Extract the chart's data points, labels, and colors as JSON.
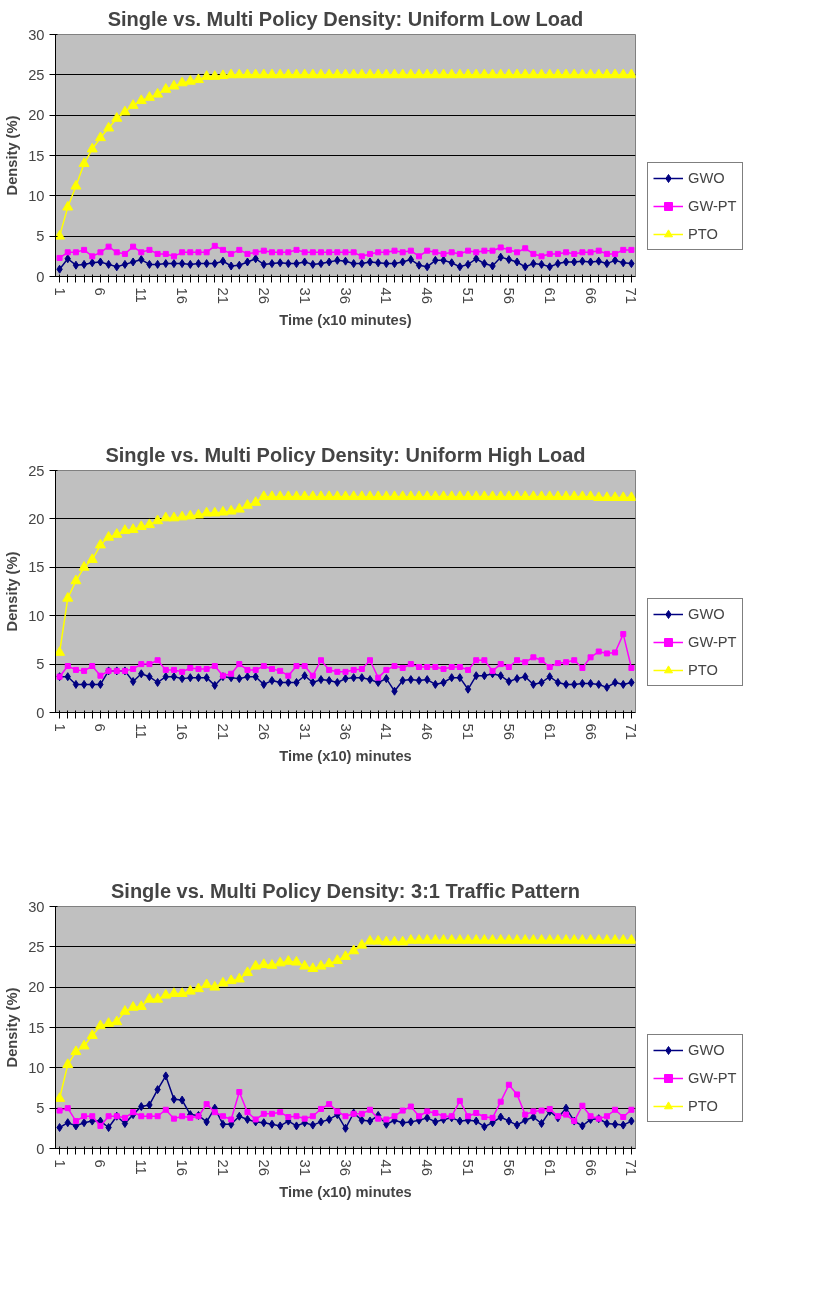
{
  "chart_data": [
    {
      "type": "line",
      "title": "Single vs. Multi Policy Density: Uniform Low Load",
      "xlabel": "Time (x10 minutes)",
      "ylabel": "Density (%)",
      "categories": [
        "1",
        null,
        null,
        null,
        null,
        "6",
        null,
        null,
        null,
        null,
        "11",
        null,
        null,
        null,
        null,
        "16",
        null,
        null,
        null,
        null,
        "21",
        null,
        null,
        null,
        null,
        "26",
        null,
        null,
        null,
        null,
        "31",
        null,
        null,
        null,
        null,
        "36",
        null,
        null,
        null,
        null,
        "41",
        null,
        null,
        null,
        null,
        "46",
        null,
        null,
        null,
        null,
        "51",
        null,
        null,
        null,
        null,
        "56",
        null,
        null,
        null,
        null,
        "61",
        null,
        null,
        null,
        null,
        "66",
        null,
        null,
        null,
        null,
        "71"
      ],
      "ylim": [
        0,
        30
      ],
      "yticks": [
        0,
        5,
        10,
        15,
        20,
        25,
        30
      ],
      "grid": "y",
      "legend": "right",
      "series": [
        {
          "name": "GWO",
          "color": "#000080",
          "marker": "diamond",
          "values": [
            0.9,
            2.2,
            1.4,
            1.5,
            1.7,
            1.8,
            1.5,
            1.2,
            1.5,
            1.8,
            2.1,
            1.5,
            1.5,
            1.6,
            1.6,
            1.6,
            1.5,
            1.6,
            1.6,
            1.6,
            1.9,
            1.3,
            1.4,
            1.8,
            2.2,
            1.5,
            1.6,
            1.7,
            1.6,
            1.6,
            1.8,
            1.5,
            1.6,
            1.8,
            2,
            1.9,
            1.6,
            1.6,
            1.8,
            1.7,
            1.6,
            1.6,
            1.8,
            2.1,
            1.4,
            1.2,
            2,
            2,
            1.7,
            1.2,
            1.5,
            2.2,
            1.6,
            1.3,
            2.4,
            2.1,
            1.8,
            1.2,
            1.6,
            1.5,
            1.2,
            1.6,
            1.8,
            1.8,
            1.9,
            1.8,
            1.9,
            1.6,
            2,
            1.7,
            1.6
          ]
        },
        {
          "name": "GW-PT",
          "color": "#ff00ff",
          "marker": "square",
          "values": [
            2.3,
            3,
            3,
            3.3,
            2.5,
            3,
            3.7,
            3,
            2.8,
            3.7,
            3,
            3.3,
            2.8,
            2.8,
            2.5,
            3,
            3,
            3,
            3,
            3.8,
            3.3,
            2.8,
            3.3,
            2.8,
            3,
            3.2,
            3,
            3,
            3,
            3.3,
            3,
            3,
            3,
            3,
            3,
            3,
            3,
            2.5,
            2.8,
            3,
            3,
            3.2,
            3,
            3.2,
            2.5,
            3.2,
            3,
            2.8,
            3,
            2.8,
            3.2,
            3,
            3.2,
            3.2,
            3.6,
            3.3,
            3,
            3.5,
            2.8,
            2.5,
            2.8,
            2.8,
            3,
            2.8,
            3,
            3,
            3.2,
            2.8,
            2.8,
            3.3,
            3.3
          ]
        },
        {
          "name": "PTO",
          "color": "#ffff00",
          "marker": "triangle",
          "values": [
            5,
            8.6,
            11.2,
            14,
            15.8,
            17.2,
            18.4,
            19.6,
            20.4,
            21.2,
            21.8,
            22.2,
            22.6,
            23.2,
            23.6,
            24,
            24.2,
            24.4,
            24.8,
            24.8,
            24.9,
            25,
            25,
            25,
            25,
            25,
            25,
            25,
            25,
            25,
            25,
            25,
            25,
            25,
            25,
            25,
            25,
            25,
            25,
            25,
            25,
            25,
            25,
            25,
            25,
            25,
            25,
            25,
            25,
            25,
            25,
            25,
            25,
            25,
            25,
            25,
            25,
            25,
            25,
            25,
            25,
            25,
            25,
            25,
            25,
            25,
            25,
            25,
            25,
            25,
            25
          ]
        }
      ]
    },
    {
      "type": "line",
      "title": "Single vs. Multi Policy Density: Uniform High Load",
      "xlabel": "Time (x10) minutes",
      "ylabel": "Density (%)",
      "categories": [
        "1",
        null,
        null,
        null,
        null,
        "6",
        null,
        null,
        null,
        null,
        "11",
        null,
        null,
        null,
        null,
        "16",
        null,
        null,
        null,
        null,
        "21",
        null,
        null,
        null,
        null,
        "26",
        null,
        null,
        null,
        null,
        "31",
        null,
        null,
        null,
        null,
        "36",
        null,
        null,
        null,
        null,
        "41",
        null,
        null,
        null,
        null,
        "46",
        null,
        null,
        null,
        null,
        "51",
        null,
        null,
        null,
        null,
        "56",
        null,
        null,
        null,
        null,
        "61",
        null,
        null,
        null,
        null,
        "66",
        null,
        null,
        null,
        null,
        "71"
      ],
      "ylim": [
        0,
        25
      ],
      "yticks": [
        0,
        5,
        10,
        15,
        20,
        25
      ],
      "grid": "y",
      "legend": "right",
      "series": [
        {
          "name": "GWO",
          "color": "#000080",
          "marker": "diamond",
          "values": [
            3.7,
            3.7,
            2.9,
            2.9,
            2.9,
            2.9,
            4.3,
            4.3,
            4.3,
            3.2,
            4,
            3.7,
            3.1,
            3.7,
            3.7,
            3.5,
            3.6,
            3.6,
            3.6,
            2.8,
            3.7,
            3.6,
            3.5,
            3.7,
            3.7,
            2.9,
            3.3,
            3.1,
            3.1,
            3.1,
            3.8,
            3.1,
            3.4,
            3.3,
            3.1,
            3.5,
            3.6,
            3.6,
            3.4,
            3.1,
            3.5,
            2.2,
            3.3,
            3.4,
            3.3,
            3.4,
            2.9,
            3.1,
            3.6,
            3.6,
            2.4,
            3.8,
            3.8,
            4,
            3.8,
            3.2,
            3.5,
            3.7,
            2.9,
            3.1,
            3.7,
            3.1,
            2.9,
            2.9,
            3,
            3,
            2.9,
            2.6,
            3.1,
            2.9,
            3.1
          ]
        },
        {
          "name": "GW-PT",
          "color": "#ff00ff",
          "marker": "square",
          "values": [
            3.7,
            4.8,
            4.4,
            4.3,
            4.8,
            3.8,
            4.3,
            4.3,
            4.3,
            4.5,
            5,
            5,
            5.4,
            4.4,
            4.4,
            4.2,
            4.6,
            4.5,
            4.5,
            4.8,
            3.8,
            4,
            5,
            4.4,
            4.4,
            4.8,
            4.5,
            4.3,
            3.8,
            4.8,
            4.8,
            3.8,
            5.4,
            4.4,
            4.2,
            4.2,
            4.4,
            4.5,
            5.4,
            3.6,
            4.4,
            4.8,
            4.6,
            5,
            4.7,
            4.7,
            4.7,
            4.5,
            4.7,
            4.7,
            4.4,
            5.4,
            5.4,
            4.3,
            5,
            4.7,
            5.4,
            5.2,
            5.7,
            5.4,
            4.7,
            5.1,
            5.2,
            5.4,
            4.6,
            5.7,
            6.3,
            6.1,
            6.2,
            8.1,
            4.6
          ]
        },
        {
          "name": "PTO",
          "color": "#ffff00",
          "marker": "triangle",
          "values": [
            6.2,
            11.8,
            13.6,
            15,
            15.8,
            17.3,
            18.1,
            18.4,
            18.8,
            18.9,
            19.2,
            19.4,
            19.8,
            20.1,
            20.1,
            20.2,
            20.3,
            20.4,
            20.6,
            20.6,
            20.7,
            20.8,
            21,
            21.4,
            21.7,
            22.3,
            22.3,
            22.3,
            22.3,
            22.3,
            22.3,
            22.3,
            22.3,
            22.3,
            22.3,
            22.3,
            22.3,
            22.3,
            22.3,
            22.3,
            22.3,
            22.3,
            22.3,
            22.3,
            22.3,
            22.3,
            22.3,
            22.3,
            22.3,
            22.3,
            22.3,
            22.3,
            22.3,
            22.3,
            22.3,
            22.3,
            22.3,
            22.3,
            22.3,
            22.3,
            22.3,
            22.3,
            22.3,
            22.3,
            22.3,
            22.3,
            22.2,
            22.2,
            22.2,
            22.2,
            22.2
          ]
        }
      ]
    },
    {
      "type": "line",
      "title": "Single vs. Multi Policy Density: 3:1 Traffic Pattern",
      "xlabel": "Time (x10) minutes",
      "ylabel": "Density (%)",
      "categories": [
        "1",
        null,
        null,
        null,
        null,
        "6",
        null,
        null,
        null,
        null,
        "11",
        null,
        null,
        null,
        null,
        "16",
        null,
        null,
        null,
        null,
        "21",
        null,
        null,
        null,
        null,
        "26",
        null,
        null,
        null,
        null,
        "31",
        null,
        null,
        null,
        null,
        "36",
        null,
        null,
        null,
        null,
        "41",
        null,
        null,
        null,
        null,
        "46",
        null,
        null,
        null,
        null,
        "51",
        null,
        null,
        null,
        null,
        "56",
        null,
        null,
        null,
        null,
        "61",
        null,
        null,
        null,
        null,
        "66",
        null,
        null,
        null,
        null,
        "71"
      ],
      "ylim": [
        0,
        30
      ],
      "yticks": [
        0,
        5,
        10,
        15,
        20,
        25,
        30
      ],
      "grid": "y",
      "legend": "right",
      "series": [
        {
          "name": "GWO",
          "color": "#000080",
          "marker": "diamond",
          "values": [
            2.6,
            3.2,
            2.8,
            3.2,
            3.4,
            3.4,
            2.6,
            4,
            3.1,
            4.2,
            5.2,
            5.4,
            7.3,
            9,
            6.1,
            6,
            4.2,
            4.1,
            3.3,
            5,
            3,
            3,
            4,
            3.6,
            3.3,
            3.2,
            3,
            2.8,
            3.4,
            2.8,
            3.2,
            2.9,
            3.3,
            3.6,
            4.2,
            2.5,
            4.4,
            3.5,
            3.4,
            4.1,
            3,
            3.5,
            3.2,
            3.3,
            3.5,
            3.8,
            3.3,
            3.6,
            3.8,
            3.4,
            3.5,
            3.4,
            2.7,
            3.2,
            3.9,
            3.4,
            2.9,
            3.5,
            3.9,
            3.1,
            4.6,
            3.8,
            5,
            3.4,
            2.8,
            3.6,
            3.7,
            3.1,
            3,
            2.9,
            3.4
          ]
        },
        {
          "name": "GW-PT",
          "color": "#ff00ff",
          "marker": "square",
          "values": [
            4.7,
            5,
            3.4,
            4,
            4,
            2.8,
            4,
            4,
            3.8,
            4.5,
            4,
            4,
            4,
            4.8,
            3.7,
            4,
            3.8,
            4,
            5.5,
            4.5,
            4,
            3.6,
            7,
            4.5,
            3.6,
            4.3,
            4.3,
            4.5,
            3.9,
            4,
            3.7,
            4,
            4.9,
            5.5,
            4.6,
            4,
            4.3,
            4.3,
            4.8,
            3.7,
            3.6,
            4,
            4.7,
            5.2,
            4,
            4.6,
            4.4,
            4,
            4,
            5.9,
            4,
            4.4,
            3.9,
            3.8,
            5.8,
            7.9,
            6.7,
            4.2,
            4.6,
            4.7,
            4.9,
            4,
            4.2,
            3.4,
            5.3,
            4,
            3.7,
            4,
            4.8,
            3.9,
            4.8
          ]
        },
        {
          "name": "PTO",
          "color": "#ffff00",
          "marker": "triangle",
          "values": [
            6.2,
            10.4,
            12,
            12.7,
            14,
            15.2,
            15.5,
            15.7,
            17,
            17.5,
            17.6,
            18.5,
            18.5,
            19,
            19.2,
            19.2,
            19.5,
            19.8,
            20.3,
            20,
            20.5,
            20.8,
            21,
            21.8,
            22.6,
            22.8,
            22.7,
            23,
            23.2,
            23.1,
            22.6,
            22.3,
            22.6,
            22.9,
            23.3,
            23.8,
            24.5,
            25.2,
            25.7,
            25.7,
            25.6,
            25.6,
            25.6,
            25.8,
            25.8,
            25.8,
            25.8,
            25.8,
            25.8,
            25.8,
            25.8,
            25.8,
            25.8,
            25.8,
            25.8,
            25.8,
            25.8,
            25.8,
            25.8,
            25.8,
            25.8,
            25.8,
            25.8,
            25.8,
            25.8,
            25.8,
            25.8,
            25.8,
            25.8,
            25.8,
            25.8
          ]
        }
      ]
    }
  ]
}
